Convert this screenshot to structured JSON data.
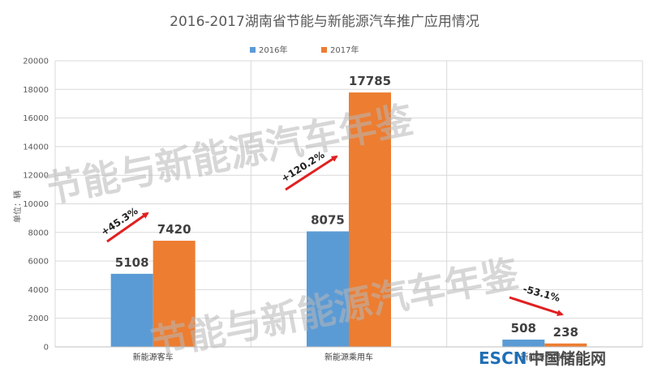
{
  "chart_data": {
    "type": "bar",
    "title": "2016-2017湖南省节能与新能源汽车推广应用情况",
    "ylabel": "单位：辆",
    "xlabel": "",
    "categories": [
      "新能源客车",
      "新能源乘用车",
      "新能源专用车"
    ],
    "series": [
      {
        "name": "2016年",
        "values": [
          5108,
          8075,
          508
        ],
        "color": "#5b9bd5"
      },
      {
        "name": "2017年",
        "values": [
          7420,
          17785,
          238
        ],
        "color": "#ed7d31"
      }
    ],
    "ylim": [
      0,
      20000
    ],
    "yticks": [
      "0",
      "2000",
      "4000",
      "6000",
      "8000",
      "10000",
      "12000",
      "14000",
      "16000",
      "18000",
      "20000"
    ],
    "grid": true,
    "legend": "top-center",
    "annotations": [
      {
        "category": 0,
        "text": "+45.3%",
        "direction": "up"
      },
      {
        "category": 1,
        "text": "+120.2%",
        "direction": "up"
      },
      {
        "category": 2,
        "text": "-53.1%",
        "direction": "down"
      }
    ]
  },
  "watermark": "节能与新能源汽车年鉴",
  "logo": {
    "prefix": "ESCN",
    "suffix": "中国储能网"
  }
}
